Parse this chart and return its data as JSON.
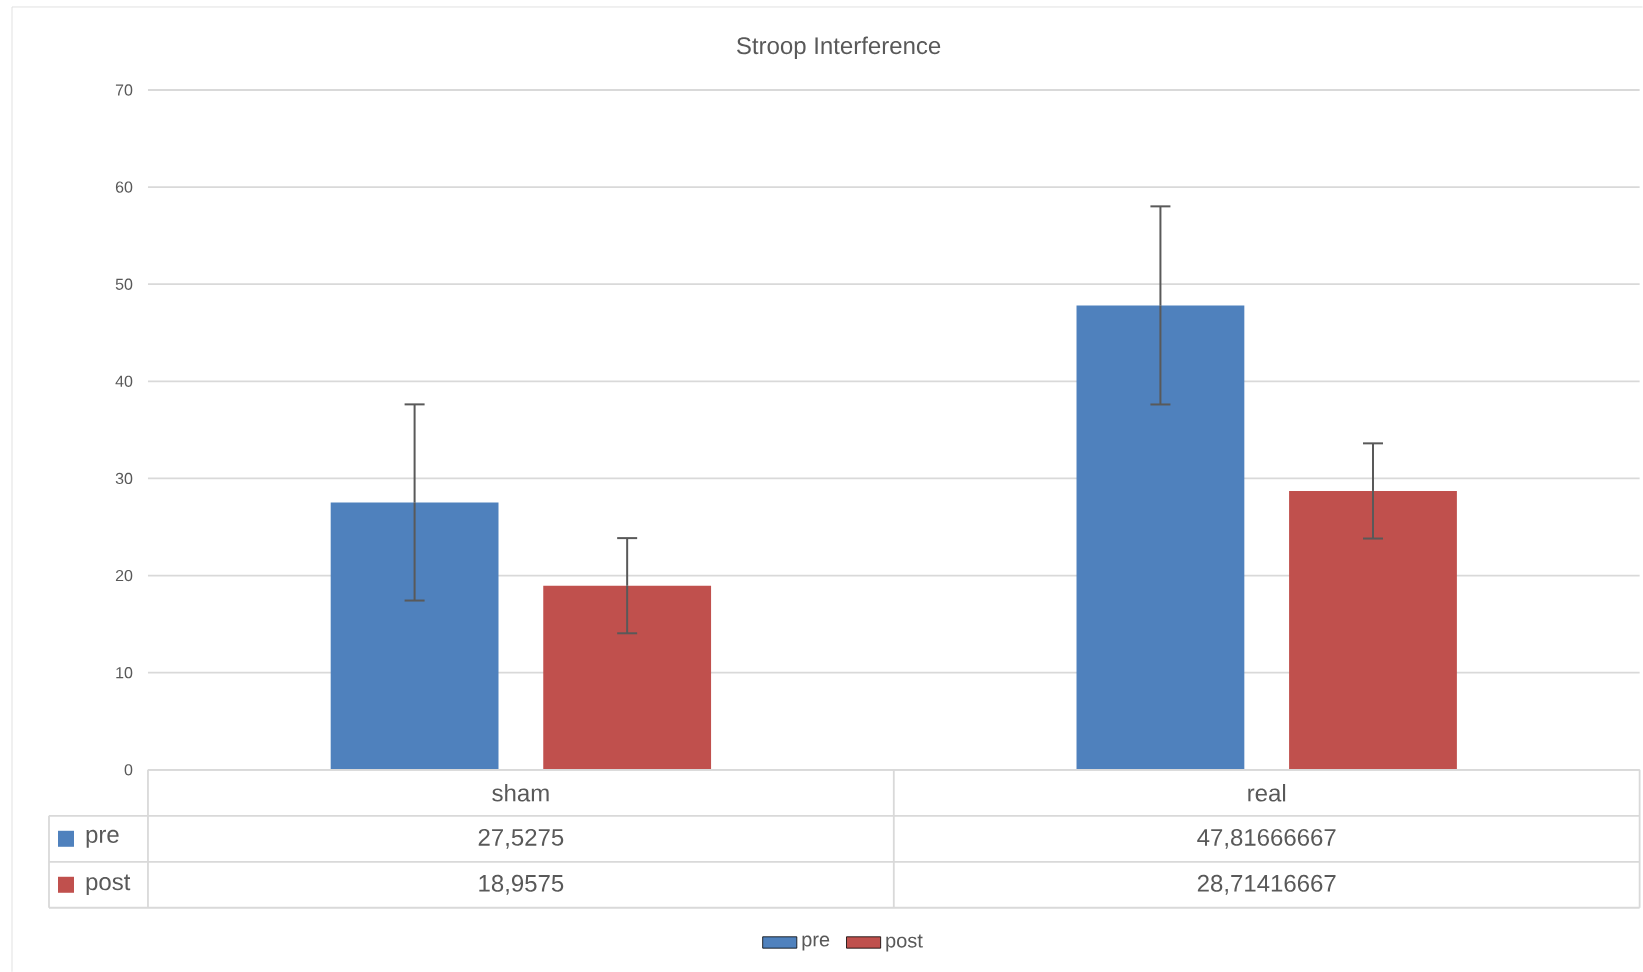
{
  "chart_data": {
    "type": "bar",
    "title": "Stroop Interference",
    "categories": [
      "sham",
      "real"
    ],
    "series": [
      {
        "name": "pre",
        "color": "#4f81bd",
        "values": [
          27.5275,
          47.81666667
        ],
        "errors": [
          10.1,
          10.2
        ],
        "value_labels": [
          "27,5275",
          "47,81666667"
        ]
      },
      {
        "name": "post",
        "color": "#c0504d",
        "values": [
          18.9575,
          28.71416667
        ],
        "errors": [
          4.9,
          4.9
        ],
        "value_labels": [
          "18,9575",
          "28,71416667"
        ]
      }
    ],
    "ylim": [
      0,
      70
    ],
    "yticks": [
      0,
      10,
      20,
      30,
      40,
      50,
      60,
      70
    ],
    "grid": "y",
    "legend": "bottom"
  }
}
